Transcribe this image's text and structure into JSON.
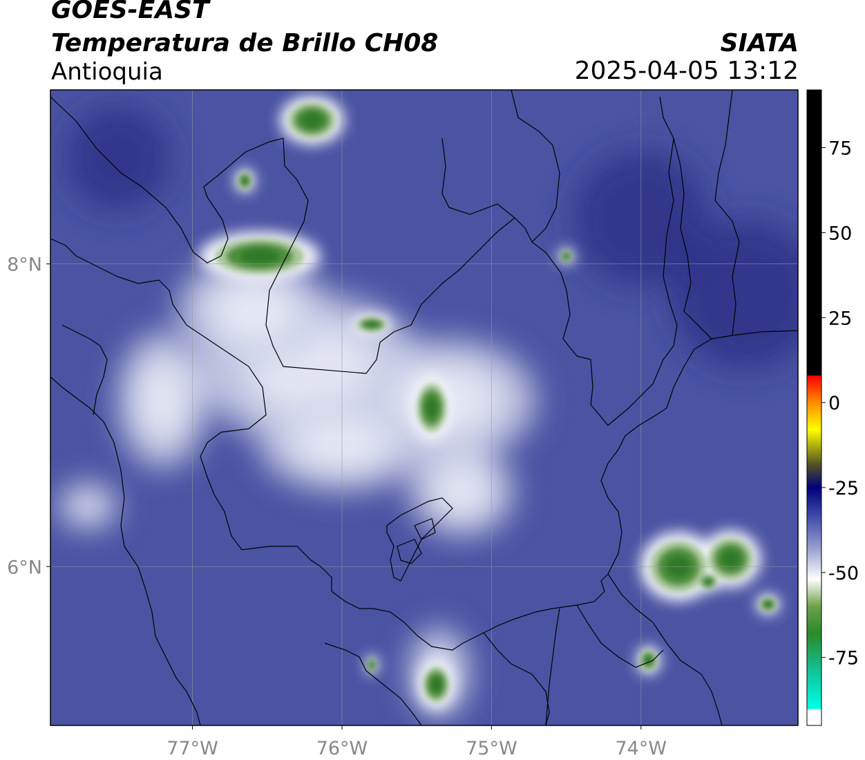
{
  "header": {
    "satellite": "GOES-EAST",
    "product": "Temperatura de Brillo CH08",
    "region": "Antioquia",
    "organization": "SIATA",
    "datetime": "2025-04-05 13:12"
  },
  "map": {
    "lon_range": [
      -77.95,
      -72.95
    ],
    "lat_range": [
      4.95,
      9.15
    ],
    "lon_ticks": [
      {
        "value": -77,
        "label": "77°W"
      },
      {
        "value": -76,
        "label": "76°W"
      },
      {
        "value": -75,
        "label": "75°W"
      },
      {
        "value": -74,
        "label": "74°W"
      }
    ],
    "lat_ticks": [
      {
        "value": 8,
        "label": "8°N"
      },
      {
        "value": 6,
        "label": "6°N"
      }
    ],
    "gridlines": true,
    "colors": {
      "background": "#4a54a3",
      "cold_blue": "#2a2f86",
      "light": "#c9cde6",
      "white": "#f4f5fb",
      "green_light": "#a8c89a",
      "green": "#4f8f3a",
      "green_dark": "#2e7a2a",
      "border": "#000000",
      "grid": "#9a9a9a"
    }
  },
  "colorbar": {
    "range": [
      -95,
      92
    ],
    "ticks": [
      {
        "value": 75,
        "label": "75"
      },
      {
        "value": 50,
        "label": "50"
      },
      {
        "value": 25,
        "label": "25"
      },
      {
        "value": 0,
        "label": "0"
      },
      {
        "value": -25,
        "label": "-25"
      },
      {
        "value": -50,
        "label": "-50"
      },
      {
        "value": -75,
        "label": "-75"
      }
    ],
    "stops": [
      {
        "value": 92,
        "color": "#000000"
      },
      {
        "value": 8,
        "color": "#000000"
      },
      {
        "value": 7.9,
        "color": "#ff0000"
      },
      {
        "value": 0,
        "color": "#ff8c00"
      },
      {
        "value": -8,
        "color": "#ffff00"
      },
      {
        "value": -18,
        "color": "#555522"
      },
      {
        "value": -25,
        "color": "#00007a"
      },
      {
        "value": -33,
        "color": "#3c46a8"
      },
      {
        "value": -43,
        "color": "#9aa0d0"
      },
      {
        "value": -52,
        "color": "#ffffff"
      },
      {
        "value": -60,
        "color": "#6da04a"
      },
      {
        "value": -68,
        "color": "#2a8a2a"
      },
      {
        "value": -80,
        "color": "#10c8a0"
      },
      {
        "value": -90,
        "color": "#00ffe8"
      },
      {
        "value": -90.5,
        "color": "#ffffff"
      },
      {
        "value": -95,
        "color": "#ffffff"
      }
    ]
  },
  "features": {
    "warm_background": [
      {
        "lon": -77.5,
        "lat": 8.7,
        "r": 0.35
      },
      {
        "lon": -74.0,
        "lat": 8.3,
        "r": 0.45
      },
      {
        "lon": -73.3,
        "lat": 7.8,
        "r": 0.5
      }
    ],
    "bright_areas": [
      {
        "lon": -76.2,
        "lat": 7.3,
        "rx": 0.75,
        "ry": 0.5
      },
      {
        "lon": -75.3,
        "lat": 7.1,
        "rx": 0.6,
        "ry": 0.4
      },
      {
        "lon": -76.6,
        "lat": 7.7,
        "rx": 0.5,
        "ry": 0.35
      },
      {
        "lon": -76.0,
        "lat": 6.8,
        "rx": 0.55,
        "ry": 0.3
      },
      {
        "lon": -77.2,
        "lat": 7.1,
        "rx": 0.3,
        "ry": 0.45
      },
      {
        "lon": -75.2,
        "lat": 6.5,
        "rx": 0.35,
        "ry": 0.3
      },
      {
        "lon": -77.7,
        "lat": 6.4,
        "rx": 0.2,
        "ry": 0.15
      },
      {
        "lon": -75.35,
        "lat": 5.3,
        "rx": 0.2,
        "ry": 0.3
      }
    ],
    "cold_cores": [
      {
        "lon": -76.2,
        "lat": 8.95,
        "rx": 0.16,
        "ry": 0.12
      },
      {
        "lon": -76.65,
        "lat": 8.55,
        "rx": 0.05,
        "ry": 0.06
      },
      {
        "lon": -76.55,
        "lat": 8.05,
        "rx": 0.3,
        "ry": 0.12
      },
      {
        "lon": -74.5,
        "lat": 8.05,
        "rx": 0.04,
        "ry": 0.04
      },
      {
        "lon": -75.4,
        "lat": 7.05,
        "rx": 0.1,
        "ry": 0.16
      },
      {
        "lon": -75.8,
        "lat": 7.6,
        "rx": 0.1,
        "ry": 0.05
      },
      {
        "lon": -73.75,
        "lat": 6.0,
        "rx": 0.19,
        "ry": 0.17
      },
      {
        "lon": -73.4,
        "lat": 6.05,
        "rx": 0.15,
        "ry": 0.14
      },
      {
        "lon": -73.15,
        "lat": 5.75,
        "rx": 0.06,
        "ry": 0.05
      },
      {
        "lon": -73.55,
        "lat": 5.9,
        "rx": 0.06,
        "ry": 0.05
      },
      {
        "lon": -75.37,
        "lat": 5.22,
        "rx": 0.09,
        "ry": 0.12
      },
      {
        "lon": -75.8,
        "lat": 5.35,
        "rx": 0.03,
        "ry": 0.05
      },
      {
        "lon": -73.95,
        "lat": 5.38,
        "rx": 0.06,
        "ry": 0.07
      }
    ]
  }
}
